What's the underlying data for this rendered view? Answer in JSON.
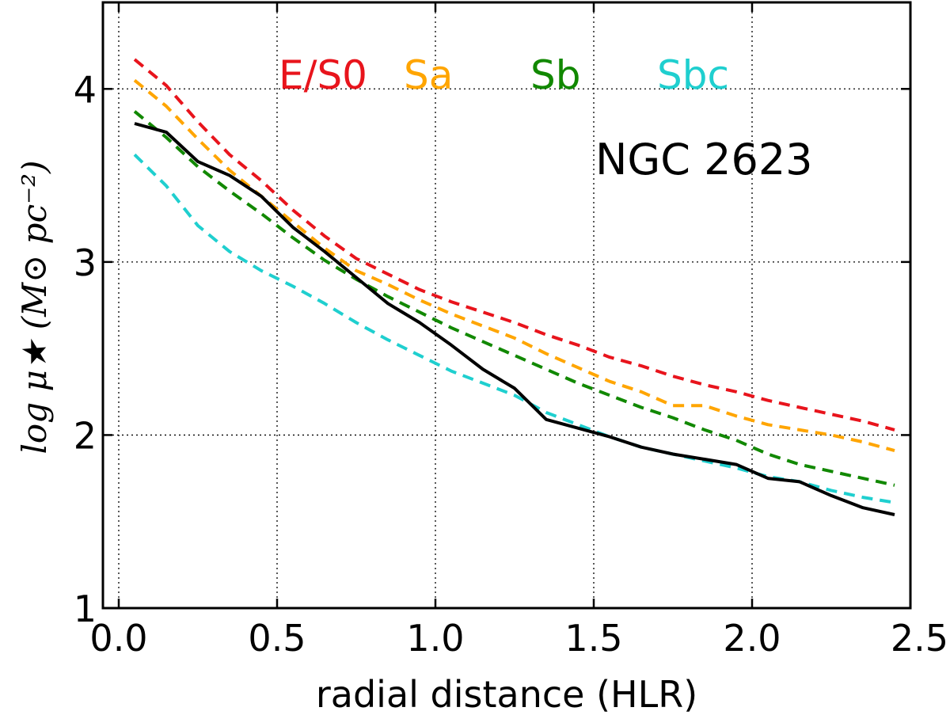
{
  "chart_data": {
    "type": "line",
    "title": "",
    "xlabel": "radial distance (HLR)",
    "ylabel": "log μ★ (M⊙ pc⁻²)",
    "xlim": [
      -0.05,
      2.5
    ],
    "ylim": [
      1,
      4.5
    ],
    "xticks": [
      0.0,
      0.5,
      1.0,
      1.5,
      2.0,
      2.5
    ],
    "xtick_labels": [
      "0.0",
      "0.5",
      "1.0",
      "1.5",
      "2.0",
      "2.5"
    ],
    "yticks": [
      1,
      2,
      3,
      4
    ],
    "ytick_labels": [
      "1",
      "2",
      "3",
      "4"
    ],
    "grid": true,
    "annotation": "NGC 2623",
    "series": [
      {
        "name": "E/S0",
        "color": "#e8141c",
        "style": "dashed",
        "x": [
          0.05,
          0.15,
          0.25,
          0.35,
          0.45,
          0.55,
          0.65,
          0.75,
          0.85,
          0.95,
          1.05,
          1.15,
          1.25,
          1.35,
          1.45,
          1.55,
          1.65,
          1.75,
          1.85,
          1.95,
          2.05,
          2.15,
          2.25,
          2.35,
          2.45
        ],
        "values": [
          4.17,
          4.02,
          3.81,
          3.62,
          3.47,
          3.3,
          3.15,
          3.02,
          2.93,
          2.84,
          2.77,
          2.71,
          2.65,
          2.58,
          2.52,
          2.45,
          2.4,
          2.34,
          2.29,
          2.25,
          2.2,
          2.16,
          2.12,
          2.08,
          2.03
        ]
      },
      {
        "name": "Sa",
        "color": "#ffa500",
        "style": "dashed",
        "x": [
          0.05,
          0.15,
          0.25,
          0.35,
          0.45,
          0.55,
          0.65,
          0.75,
          0.85,
          0.95,
          1.05,
          1.15,
          1.25,
          1.35,
          1.45,
          1.55,
          1.65,
          1.75,
          1.85,
          1.95,
          2.05,
          2.15,
          2.25,
          2.35,
          2.45
        ],
        "values": [
          4.05,
          3.9,
          3.71,
          3.53,
          3.38,
          3.23,
          3.08,
          2.95,
          2.87,
          2.78,
          2.7,
          2.63,
          2.56,
          2.47,
          2.39,
          2.31,
          2.25,
          2.17,
          2.17,
          2.11,
          2.06,
          2.03,
          2.0,
          1.96,
          1.91
        ]
      },
      {
        "name": "Sb",
        "color": "#118800",
        "style": "dashed",
        "x": [
          0.05,
          0.15,
          0.25,
          0.35,
          0.45,
          0.55,
          0.65,
          0.75,
          0.85,
          0.95,
          1.05,
          1.15,
          1.25,
          1.35,
          1.45,
          1.55,
          1.65,
          1.75,
          1.85,
          1.95,
          2.05,
          2.15,
          2.25,
          2.35,
          2.45
        ],
        "values": [
          3.87,
          3.72,
          3.55,
          3.41,
          3.28,
          3.14,
          3.01,
          2.9,
          2.8,
          2.71,
          2.62,
          2.54,
          2.46,
          2.38,
          2.3,
          2.23,
          2.16,
          2.1,
          2.03,
          1.97,
          1.89,
          1.83,
          1.79,
          1.75,
          1.71
        ]
      },
      {
        "name": "Sbc",
        "color": "#1fcfcf",
        "style": "dashed",
        "x": [
          0.05,
          0.15,
          0.25,
          0.35,
          0.45,
          0.55,
          0.65,
          0.75,
          0.85,
          0.95,
          1.05,
          1.15,
          1.25,
          1.35,
          1.45,
          1.55,
          1.65,
          1.75,
          1.85,
          1.95,
          2.05,
          2.15,
          2.25,
          2.35,
          2.45
        ],
        "values": [
          3.62,
          3.44,
          3.21,
          3.06,
          2.95,
          2.86,
          2.76,
          2.65,
          2.55,
          2.46,
          2.37,
          2.3,
          2.23,
          2.13,
          2.06,
          1.99,
          1.93,
          1.89,
          1.85,
          1.81,
          1.76,
          1.73,
          1.68,
          1.64,
          1.61
        ]
      },
      {
        "name": "NGC 2623",
        "color": "#000000",
        "style": "solid",
        "x": [
          0.05,
          0.15,
          0.25,
          0.35,
          0.45,
          0.55,
          0.65,
          0.75,
          0.85,
          0.95,
          1.05,
          1.15,
          1.25,
          1.35,
          1.45,
          1.55,
          1.65,
          1.75,
          1.85,
          1.95,
          2.05,
          2.15,
          2.25,
          2.35,
          2.45
        ],
        "values": [
          3.8,
          3.75,
          3.58,
          3.5,
          3.38,
          3.2,
          3.06,
          2.91,
          2.76,
          2.65,
          2.52,
          2.38,
          2.27,
          2.09,
          2.04,
          1.99,
          1.93,
          1.89,
          1.86,
          1.83,
          1.75,
          1.73,
          1.65,
          1.58,
          1.54
        ]
      }
    ],
    "legend": [
      {
        "label": "E/S0",
        "color": "#e8141c"
      },
      {
        "label": "Sa",
        "color": "#ffa500"
      },
      {
        "label": "Sb",
        "color": "#118800"
      },
      {
        "label": "Sbc",
        "color": "#1fcfcf"
      }
    ]
  }
}
